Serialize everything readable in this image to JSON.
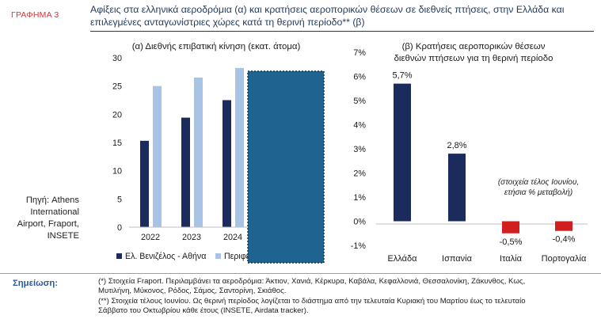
{
  "figure_label": "ΓΡΑΦΗΜΑ 3",
  "title": "Αφίξεις στα ελληνικά αεροδρόμια (α) και κρατήσεις αεροπορικών θέσεων σε διεθνείς πτήσεις, στην Ελλάδα και επιλεγμένες ανταγωνίστριες χώρες κατά τη θερινή περίοδο** (β)",
  "source": [
    "Πηγή: Athens",
    "International",
    "Airport, Fraport,",
    "INSETE"
  ],
  "notes_label": "Σημείωση:",
  "notes": [
    "(*) Στοιχεία Fraport. Περιλαμβάνει τα αεροδρόμια: Άκτιον, Χανιά, Κέρκυρα, Καβάλα, Κεφαλλονιά, Θεσσαλονίκη, Ζάκυνθος, Κως,",
    "Μυτιλήνη, Μύκονος, Ρόδος, Σάμος, Σαντορίνη, Σκιάθος.",
    "(**) Στοιχεία τέλους Ιουνίου. Ως θερινή περίοδος λογίζεται το διάστημα από την τελευταία Κυριακή του Μαρτίου έως το τελευταίο",
    "Σάββατο του Οκτωβρίου κάθε έτους (INSETE, Airdata tracker)."
  ],
  "colors": {
    "dark": "#1b2b5c",
    "light": "#a7c4e6",
    "red": "#d11f1f",
    "overlay": "#1f6391",
    "overlay_border": "#0e3a56"
  },
  "chart_data": [
    {
      "type": "bar",
      "title": "(α) Διεθνής επιβατική κίνηση (εκατ. άτομα)",
      "categories": [
        "2022",
        "2023",
        "2024"
      ],
      "series": [
        {
          "name": "Ελ. Βενιζέλος - Αθήνα",
          "values": [
            15.3,
            19.4,
            22.5
          ],
          "color": "#1b2b5c"
        },
        {
          "name": "Περιφερειακά αεροδρόμια*",
          "values": [
            25.0,
            26.5,
            28.2
          ],
          "color": "#a7c4e6"
        }
      ],
      "ylim": [
        0,
        30
      ],
      "yticks": [
        "0",
        "5",
        "10",
        "15",
        "20",
        "25",
        "30"
      ],
      "legend": "bottom"
    },
    {
      "type": "bar",
      "title": [
        "(β) Κρατήσεις αεροπορικών θέσεων",
        "διεθνών πτήσεων για τη θερινή περίοδο"
      ],
      "categories": [
        "Ελλάδα",
        "Ισπανία",
        "Ιταλία",
        "Πορτογαλία"
      ],
      "values": [
        5.7,
        2.8,
        -0.5,
        -0.4
      ],
      "data_labels": [
        "5,7%",
        "2,8%",
        "-0,5%",
        "-0,4%"
      ],
      "ylim": [
        -1,
        7
      ],
      "yticks": [
        "-1%",
        "0%",
        "1%",
        "2%",
        "3%",
        "4%",
        "5%",
        "6%",
        "7%"
      ],
      "annotation": [
        "(στοιχεία τέλος Ιουνίου,",
        "ετήσια % μεταβολή)"
      ]
    }
  ]
}
